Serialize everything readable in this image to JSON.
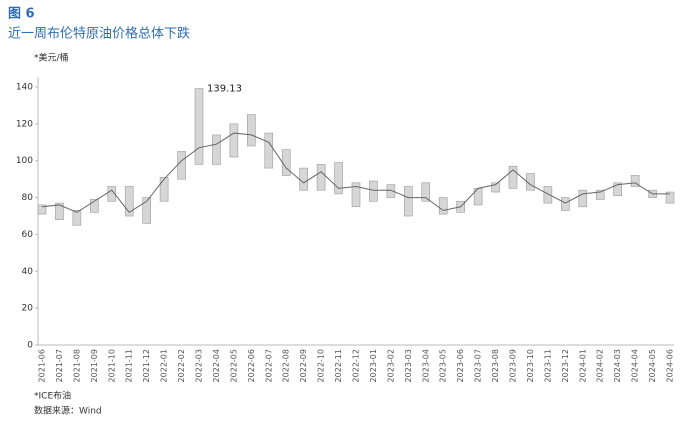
{
  "chart_data": {
    "type": "range",
    "figure_label": "图 6",
    "title": "近一周布伦特原油价格总体下跌",
    "y_unit": "*美元/桶",
    "note": "*ICE布油",
    "source": "数据来源：Wind",
    "x": [
      "2021-06",
      "2021-07",
      "2021-08",
      "2021-09",
      "2021-10",
      "2021-11",
      "2021-12",
      "2022-01",
      "2022-02",
      "2022-03",
      "2022-04",
      "2022-05",
      "2022-06",
      "2022-07",
      "2022-08",
      "2022-09",
      "2022-10",
      "2022-11",
      "2022-12",
      "2023-01",
      "2023-02",
      "2023-03",
      "2023-04",
      "2023-05",
      "2023-06",
      "2023-07",
      "2023-08",
      "2023-09",
      "2023-10",
      "2023-11",
      "2023-12",
      "2024-01",
      "2024-02",
      "2024-03",
      "2024-04",
      "2024-05",
      "2024-06"
    ],
    "lows": [
      71,
      68,
      65,
      72,
      78,
      70,
      66,
      78,
      90,
      98,
      98,
      102,
      108,
      96,
      92,
      84,
      84,
      82,
      75,
      78,
      80,
      70,
      78,
      71,
      72,
      76,
      83,
      85,
      84,
      77,
      73,
      75,
      79,
      81,
      86,
      80,
      77
    ],
    "highs": [
      76,
      77,
      73,
      79,
      86,
      86,
      80,
      91,
      105,
      139.13,
      114,
      120,
      125,
      115,
      106,
      96,
      98,
      99,
      88,
      89,
      87,
      86,
      88,
      80,
      78,
      85,
      88,
      97,
      93,
      86,
      80,
      84,
      84,
      88,
      92,
      84,
      83
    ],
    "closes": [
      75,
      76,
      72,
      78,
      84,
      72,
      78,
      90,
      100,
      107,
      109,
      115,
      114,
      110,
      96,
      88,
      94,
      85,
      86,
      84,
      84,
      80,
      80,
      73,
      75,
      85,
      87,
      95,
      87,
      82,
      77,
      82,
      83,
      87,
      88,
      82,
      82
    ],
    "color": "#9a9a9a",
    "annotations": [
      {
        "label": "139.13",
        "x": "2022-03",
        "y": 139.13
      }
    ],
    "ylim": [
      0,
      140
    ],
    "yticks": [
      0,
      20,
      40,
      60,
      80,
      100,
      120,
      140
    ]
  }
}
